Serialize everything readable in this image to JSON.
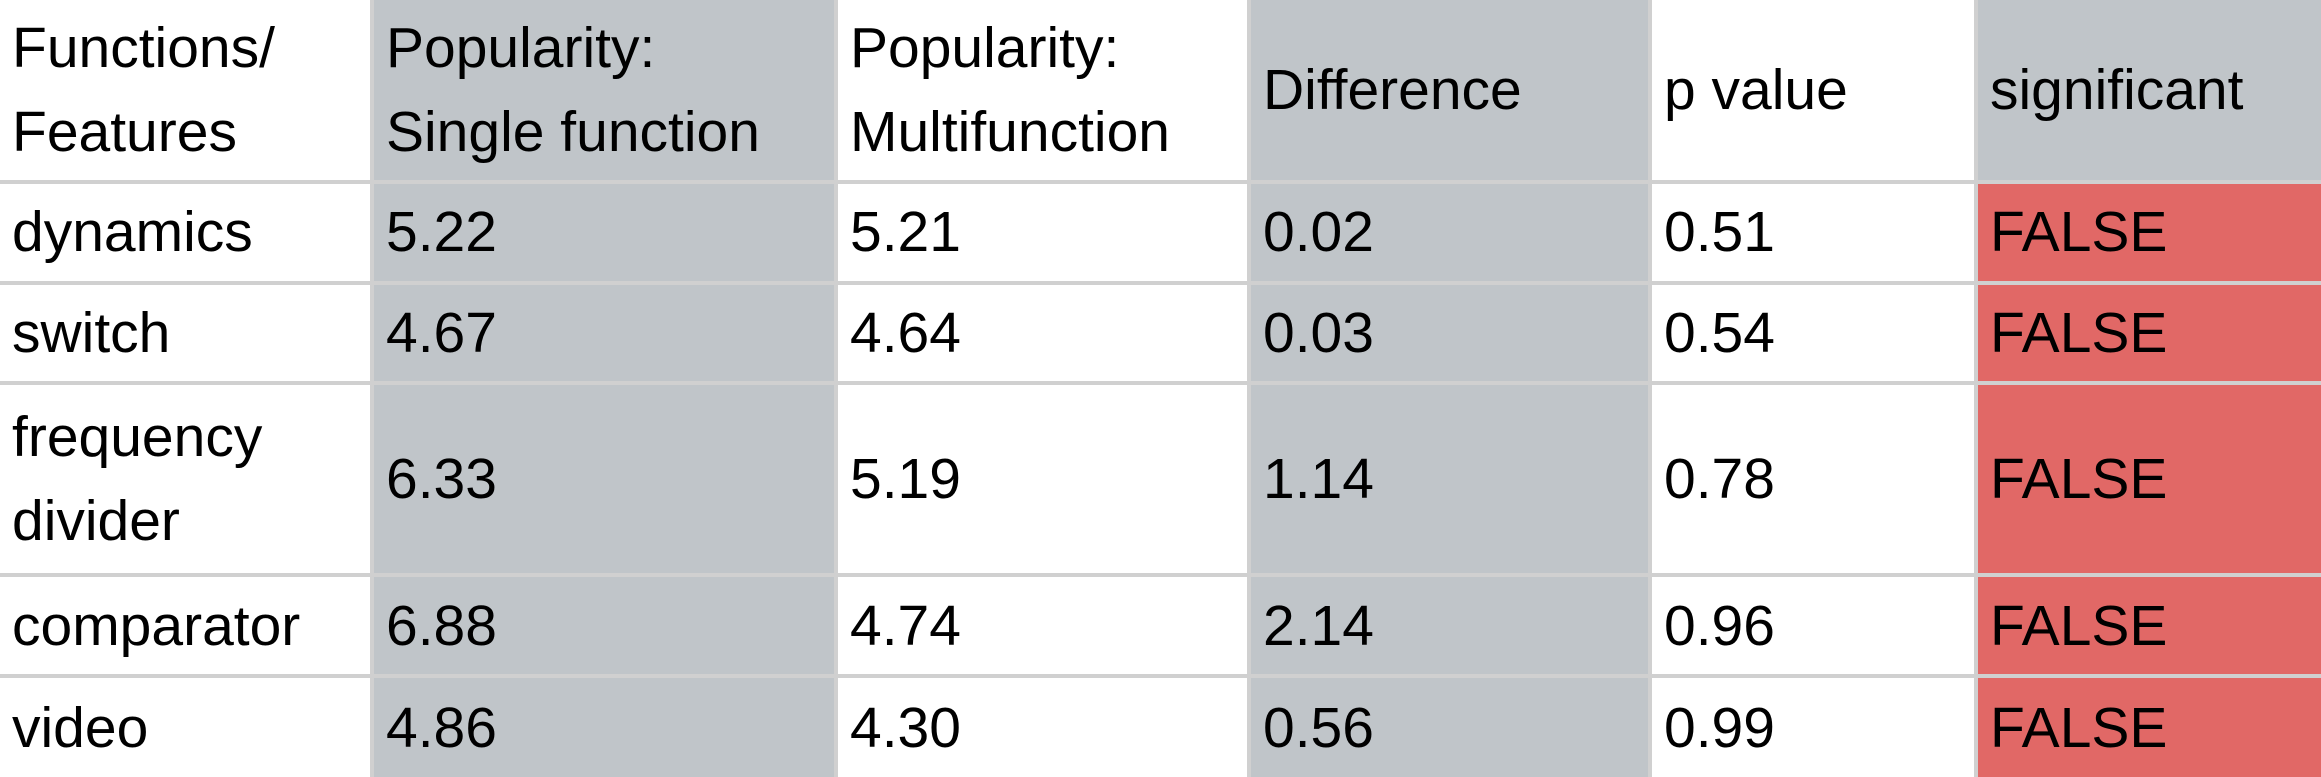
{
  "table": {
    "headers": [
      "Functions/ Features",
      "Popularity: Single function",
      "Popularity: Multifunction",
      "Difference",
      "p value",
      "significant"
    ],
    "header_lines": [
      [
        "Functions/",
        "Features"
      ],
      [
        "Popularity:",
        "Single function"
      ],
      [
        "Popularity:",
        "Multifunction"
      ],
      [
        "Difference"
      ],
      [
        "p value"
      ],
      [
        "significant"
      ]
    ],
    "rows": [
      {
        "feature": [
          "dynamics"
        ],
        "single": "5.22",
        "multi": "5.21",
        "difference": "0.02",
        "p_value": "0.51",
        "significant": "FALSE"
      },
      {
        "feature": [
          "switch"
        ],
        "single": "4.67",
        "multi": "4.64",
        "difference": "0.03",
        "p_value": "0.54",
        "significant": "FALSE"
      },
      {
        "feature": [
          "frequency",
          "divider"
        ],
        "single": "6.33",
        "multi": "5.19",
        "difference": "1.14",
        "p_value": "0.78",
        "significant": "FALSE"
      },
      {
        "feature": [
          "comparator"
        ],
        "single": "6.88",
        "multi": "4.74",
        "difference": "2.14",
        "p_value": "0.96",
        "significant": "FALSE"
      },
      {
        "feature": [
          "video"
        ],
        "single": "4.86",
        "multi": "4.30",
        "difference": "0.56",
        "p_value": "0.99",
        "significant": "FALSE"
      }
    ]
  },
  "colors": {
    "shaded_column": "#c0c5c9",
    "false_cell": "#e16866",
    "grid_line": "#d0d0d0"
  }
}
